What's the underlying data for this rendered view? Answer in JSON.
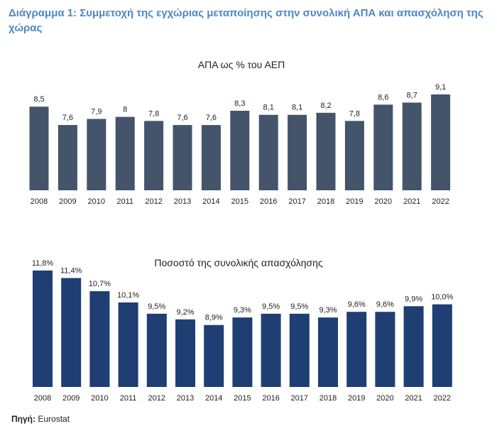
{
  "figure_title": "Διάγραμμα 1: Συμμετοχή της εγχώριας μεταποίησης στην συνολική ΑΠΑ και απασχόληση της χώρας",
  "source": {
    "label": "Πηγή:",
    "value": "Eurostat"
  },
  "chart_data": [
    {
      "type": "bar",
      "title": "ΑΠΑ ως % του ΑΕΠ",
      "categories": [
        "2008",
        "2009",
        "2010",
        "2011",
        "2012",
        "2013",
        "2014",
        "2015",
        "2016",
        "2017",
        "2018",
        "2019",
        "2020",
        "2021",
        "2022"
      ],
      "values": [
        8.5,
        7.6,
        7.9,
        8.0,
        7.8,
        7.6,
        7.6,
        8.3,
        8.1,
        8.1,
        8.2,
        7.8,
        8.6,
        8.7,
        9.1
      ],
      "value_labels": [
        "8,5",
        "7,6",
        "7,9",
        "8",
        "7,8",
        "7,6",
        "7,6",
        "8,3",
        "8,1",
        "8,1",
        "8,2",
        "7,8",
        "8,6",
        "8,7",
        "9,1"
      ],
      "color": "#44546a",
      "grid": false,
      "y_axis_visible": false
    },
    {
      "type": "bar",
      "title": "Ποσοστό της συνολικής απασχόλησης",
      "categories": [
        "2008",
        "2009",
        "2010",
        "2011",
        "2012",
        "2013",
        "2014",
        "2015",
        "2016",
        "2017",
        "2018",
        "2019",
        "2020",
        "2021",
        "2022"
      ],
      "values": [
        11.8,
        11.4,
        10.7,
        10.1,
        9.5,
        9.2,
        8.9,
        9.3,
        9.5,
        9.5,
        9.3,
        9.6,
        9.6,
        9.9,
        10.0
      ],
      "value_labels": [
        "11,8%",
        "11,4%",
        "10,7%",
        "10,1%",
        "9,5%",
        "9,2%",
        "8,9%",
        "9,3%",
        "9,5%",
        "9,5%",
        "9,3%",
        "9,6%",
        "9,6%",
        "9,9%",
        "10,0%"
      ],
      "color": "#1f3e74",
      "grid": false,
      "y_axis_visible": false
    }
  ]
}
